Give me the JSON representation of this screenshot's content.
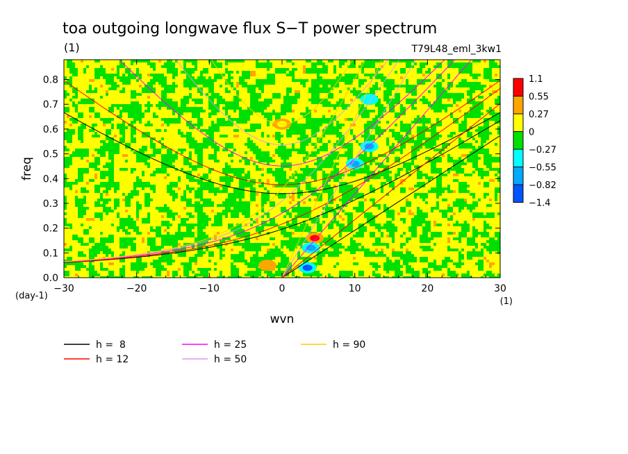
{
  "chart_data": {
    "type": "heatmap",
    "title": "toa outgoing longwave flux S−T power spectrum",
    "subtitle": "(1)",
    "run_label": "T79L48_eml_3kw1",
    "xlabel": "wvn",
    "ylabel": "freq",
    "x_unit": "(1)",
    "y_unit": "(day-1)",
    "xlim": [
      -30,
      30
    ],
    "ylim": [
      0,
      0.88
    ],
    "x_ticks": [
      -30,
      -20,
      -10,
      0,
      10,
      20,
      30
    ],
    "x_tick_labels": [
      "−30",
      "−20",
      "−10",
      "0",
      "10",
      "20",
      "30"
    ],
    "y_ticks": [
      0,
      0.1,
      0.2,
      0.3,
      0.4,
      0.5,
      0.6,
      0.7,
      0.8
    ],
    "y_tick_labels": [
      "0.0",
      "0.1",
      "0.2",
      "0.3",
      "0.4",
      "0.5",
      "0.6",
      "0.7",
      "0.8"
    ],
    "colorbar": {
      "labels": [
        "1.1",
        "0.55",
        "0.27",
        "0",
        "−0.27",
        "−0.55",
        "−0.82",
        "−1.4"
      ],
      "values": [
        1.1,
        0.55,
        0.27,
        0,
        -0.27,
        -0.55,
        -0.82,
        -1.4
      ],
      "colors": [
        "#ff0000",
        "#ffa500",
        "#ffff00",
        "#00e000",
        "#00ffff",
        "#00aaff",
        "#0055ff"
      ]
    },
    "dispersion_curves": [
      {
        "label": "h =  8",
        "h": 8,
        "color": "#000000"
      },
      {
        "label": "h = 12",
        "h": 12,
        "color": "#ff0000"
      },
      {
        "label": "h = 25",
        "h": 25,
        "color": "#ff00ff"
      },
      {
        "label": "h = 50",
        "h": 50,
        "color": "#dd99ee"
      },
      {
        "label": "h = 90",
        "h": 90,
        "color": "#ffcc00"
      }
    ],
    "anomalies": [
      {
        "wvn": 4.5,
        "freq": 0.16,
        "level": 1.1
      },
      {
        "wvn": 3.5,
        "freq": 0.04,
        "level": -0.82
      },
      {
        "wvn": 4,
        "freq": 0.12,
        "level": -0.55
      },
      {
        "wvn": 10,
        "freq": 0.46,
        "level": -0.55
      },
      {
        "wvn": 12,
        "freq": 0.53,
        "level": -0.55
      },
      {
        "wvn": 12,
        "freq": 0.72,
        "level": -0.27
      },
      {
        "wvn": 0,
        "freq": 0.62,
        "level": 0.27
      },
      {
        "wvn": -2,
        "freq": 0.05,
        "level": 0.55
      }
    ]
  }
}
